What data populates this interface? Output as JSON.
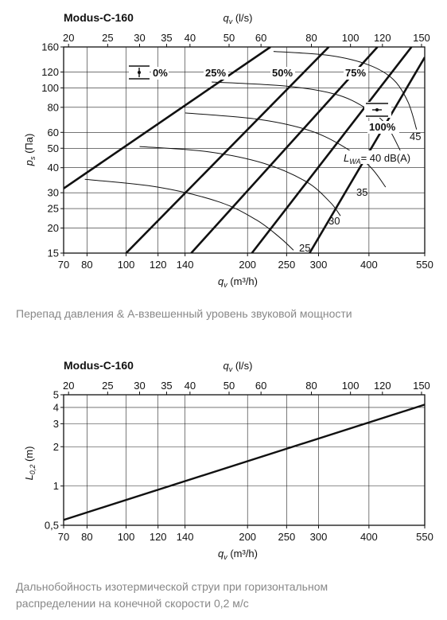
{
  "chart_data": [
    {
      "type": "line",
      "title": "Modus-C-160",
      "x_top": {
        "label_q": "q",
        "label_sub": "v",
        "label_unit": " (l/s)",
        "ticks": [
          20,
          25,
          30,
          35,
          40,
          50,
          60,
          80,
          100,
          120,
          150
        ]
      },
      "x_bottom": {
        "label_q": "q",
        "label_sub": "v",
        "label_unit": " (m³/h)",
        "ticks": [
          70,
          80,
          100,
          120,
          140,
          200,
          250,
          300,
          400,
          550
        ],
        "range": [
          70,
          550
        ],
        "scale": "log"
      },
      "y": {
        "label_p": "p",
        "label_sub": "s",
        "label_unit": " (Па)",
        "ticks": [
          15,
          20,
          25,
          30,
          40,
          50,
          60,
          80,
          100,
          120,
          160
        ],
        "range": [
          15,
          160
        ],
        "scale": "log"
      },
      "grid": true,
      "damper_lines": [
        {
          "label": "0%",
          "points": [
            [
              70,
              31.5
            ],
            [
              228,
              160
            ]
          ]
        },
        {
          "label": "25%",
          "points": [
            [
              100,
              15
            ],
            [
              318,
              160
            ]
          ]
        },
        {
          "label": "50%",
          "points": [
            [
              145,
              15
            ],
            [
              420,
              160
            ]
          ]
        },
        {
          "label": "75%",
          "points": [
            [
              205,
              15
            ],
            [
              510,
              160
            ]
          ]
        },
        {
          "label": "100%",
          "points": [
            [
              285,
              15
            ],
            [
              550,
              142
            ]
          ]
        }
      ],
      "sound_curves": [
        {
          "label": "25",
          "points": [
            [
              79,
              35
            ],
            [
              120,
              32
            ],
            [
              170,
              27
            ],
            [
              210,
              22
            ],
            [
              240,
              18
            ],
            [
              260,
              15.5
            ]
          ]
        },
        {
          "label": "30",
          "points": [
            [
              108,
              51
            ],
            [
              160,
              48
            ],
            [
              220,
              42
            ],
            [
              280,
              34
            ],
            [
              320,
              27
            ],
            [
              340,
              23
            ]
          ]
        },
        {
          "label": "35",
          "points": [
            [
              140,
              75
            ],
            [
              210,
              70
            ],
            [
              280,
              62
            ],
            [
              340,
              52
            ],
            [
              400,
              41
            ],
            [
              440,
              32
            ]
          ]
        },
        {
          "label": "40",
          "points": [
            [
              163,
              107
            ],
            [
              250,
              102
            ],
            [
              330,
              93
            ],
            [
              390,
              80
            ],
            [
              440,
              66
            ],
            [
              480,
              48
            ]
          ]
        },
        {
          "label": "45",
          "points": [
            [
              232,
              152
            ],
            [
              320,
              145
            ],
            [
              400,
              130
            ],
            [
              460,
              110
            ],
            [
              500,
              85
            ],
            [
              525,
              62
            ]
          ]
        }
      ],
      "lwa_label": {
        "l": "L",
        "sub": "WA",
        "eq": "= ",
        "value": "40",
        "unit": " dB(A)"
      }
    },
    {
      "type": "line",
      "title": "Modus-C-160",
      "x_top": {
        "label_q": "q",
        "label_sub": "v",
        "label_unit": " (l/s)",
        "ticks": [
          20,
          25,
          30,
          35,
          40,
          50,
          60,
          80,
          100,
          120,
          150
        ]
      },
      "x_bottom": {
        "label_q": "q",
        "label_sub": "v",
        "label_unit": " (m³/h)",
        "ticks": [
          70,
          80,
          100,
          120,
          140,
          200,
          250,
          300,
          400,
          550
        ],
        "range": [
          70,
          550
        ],
        "scale": "log"
      },
      "y": {
        "label_l": "L",
        "label_sub": "0,2",
        "label_unit": " (m)",
        "ticks": [
          "0,5",
          "1",
          "2",
          "3",
          "4",
          "5"
        ],
        "tick_values": [
          0.5,
          1,
          2,
          3,
          4,
          5
        ],
        "range": [
          0.5,
          5
        ],
        "scale": "log"
      },
      "grid": true,
      "series": [
        {
          "points": [
            [
              70,
              0.55
            ],
            [
              550,
              4.2
            ]
          ]
        }
      ]
    }
  ],
  "captions": {
    "chart1": "Перепад давления & A-взвешенный уровень звуковой мощности",
    "chart2_line1": "Дальнобойность изотермической струи при горизонтальном",
    "chart2_line2": "распределении на конечной скорости 0,2 м/с"
  },
  "colors": {
    "line": "#111111",
    "grid": "#222222",
    "caption": "#888888"
  },
  "icons": [
    "damper-closed-icon",
    "damper-open-icon"
  ]
}
